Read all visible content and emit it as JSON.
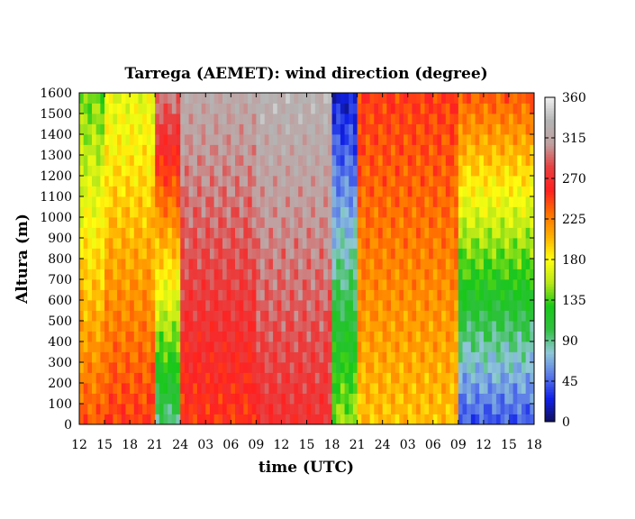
{
  "chart_data": {
    "type": "heatmap",
    "title": "Tarrega (AEMET): wind direction (degree)",
    "xlabel": "time (UTC)",
    "ylabel": "Altura (m)",
    "x_ticks": [
      "12",
      "15",
      "18",
      "21",
      "24",
      "03",
      "06",
      "09",
      "12",
      "15",
      "18",
      "21",
      "24",
      "03",
      "06",
      "09",
      "12",
      "15",
      "18"
    ],
    "x_range_hours": [
      0,
      54
    ],
    "ylim": [
      0,
      1600
    ],
    "y_ticks": [
      0,
      100,
      200,
      300,
      400,
      500,
      600,
      700,
      800,
      900,
      1000,
      1100,
      1200,
      1300,
      1400,
      1500,
      1600
    ],
    "colorbar": {
      "range": [
        0,
        360
      ],
      "ticks": [
        0,
        45,
        90,
        135,
        180,
        225,
        270,
        315,
        360
      ],
      "colors": [
        "#10105a",
        "#1020e8",
        "#5a7ae8",
        "#90c8d8",
        "#30c040",
        "#18c818",
        "#b8e818",
        "#ffff10",
        "#ffb000",
        "#ff7000",
        "#ff2020",
        "#e84040",
        "#c0a0a0",
        "#b4b4b4",
        "#f0f0f0"
      ],
      "position": "right"
    },
    "grid": false,
    "regimes": [
      {
        "from_hour": 0,
        "to_hour": 3,
        "low_deg": 240,
        "high_deg": 140
      },
      {
        "from_hour": 3,
        "to_hour": 9,
        "low_deg": 250,
        "high_deg": 170
      },
      {
        "from_hour": 9,
        "to_hour": 12,
        "low_deg": 90,
        "high_deg": 300
      },
      {
        "from_hour": 12,
        "to_hour": 21,
        "low_deg": 250,
        "high_deg": 320
      },
      {
        "from_hour": 21,
        "to_hour": 30,
        "low_deg": 270,
        "high_deg": 330
      },
      {
        "from_hour": 30,
        "to_hour": 33,
        "low_deg": 150,
        "high_deg": 20
      },
      {
        "from_hour": 33,
        "to_hour": 45,
        "low_deg": 200,
        "high_deg": 250
      },
      {
        "from_hour": 45,
        "to_hour": 54,
        "low_deg": 40,
        "high_deg": 240
      }
    ]
  }
}
